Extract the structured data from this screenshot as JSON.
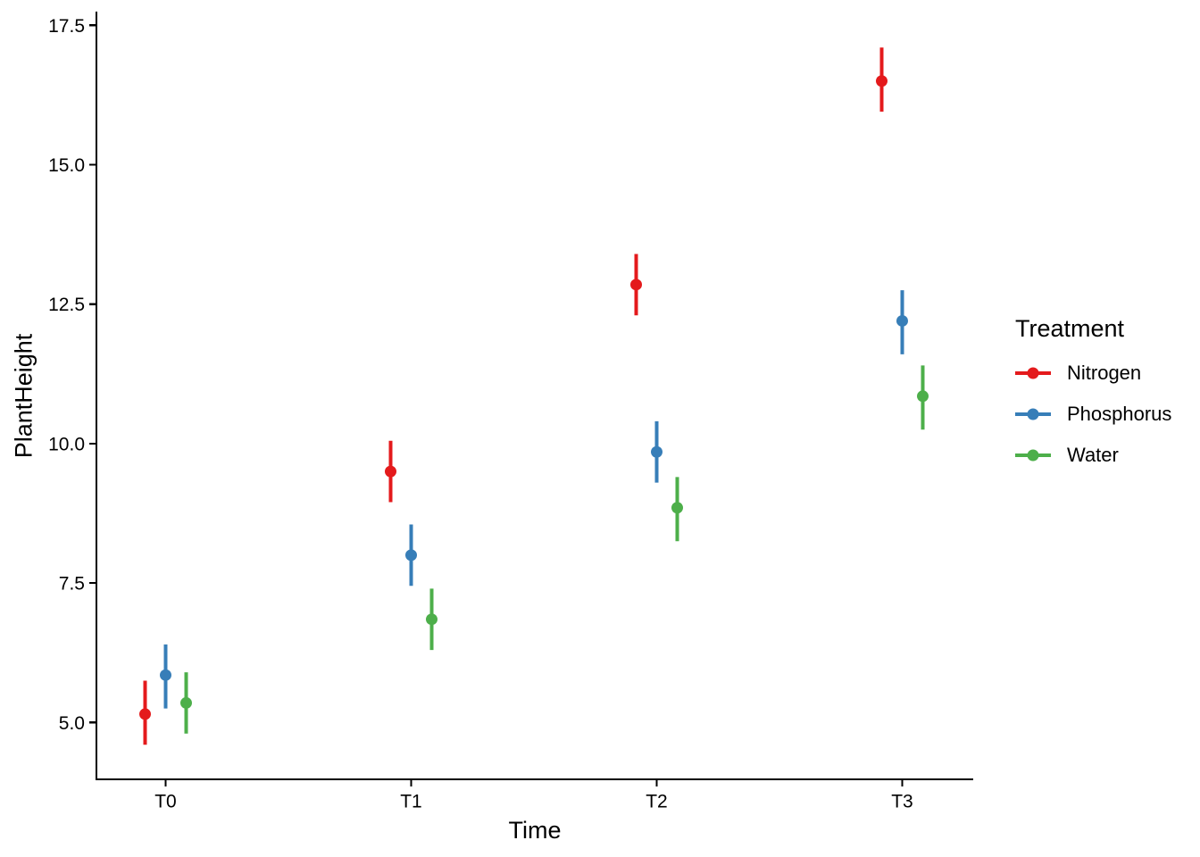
{
  "chart_data": {
    "type": "scatter",
    "subtype": "pointrange-dodged",
    "title": "",
    "xlabel": "Time",
    "ylabel": "PlantHeight",
    "categories": [
      "T0",
      "T1",
      "T2",
      "T3"
    ],
    "y_ticks": [
      5.0,
      7.5,
      10.0,
      12.5,
      15.0,
      17.5
    ],
    "y_tick_labels": [
      "5.0",
      "7.5",
      "10.0",
      "12.5",
      "15.0",
      "17.5"
    ],
    "ylim": [
      4.0,
      17.75
    ],
    "grid": false,
    "background": "#FFFFFF",
    "axis_color": "#000000",
    "text_color": "#000000",
    "legend": {
      "title": "Treatment",
      "position": "right"
    },
    "series": [
      {
        "name": "Nitrogen",
        "color": "#E41A1C",
        "means": [
          5.15,
          9.5,
          12.85,
          16.5
        ],
        "ci_low": [
          4.6,
          8.95,
          12.3,
          15.95
        ],
        "ci_high": [
          5.75,
          10.05,
          13.4,
          17.1
        ]
      },
      {
        "name": "Phosphorus",
        "color": "#377EB8",
        "means": [
          5.85,
          8.0,
          9.85,
          12.2
        ],
        "ci_low": [
          5.25,
          7.45,
          9.3,
          11.6
        ],
        "ci_high": [
          6.4,
          8.55,
          10.4,
          12.75
        ]
      },
      {
        "name": "Water",
        "color": "#4DAF4A",
        "means": [
          5.35,
          6.85,
          8.85,
          10.85
        ],
        "ci_low": [
          4.8,
          6.3,
          8.25,
          10.25
        ],
        "ci_high": [
          5.9,
          7.4,
          9.4,
          11.4
        ]
      }
    ]
  }
}
